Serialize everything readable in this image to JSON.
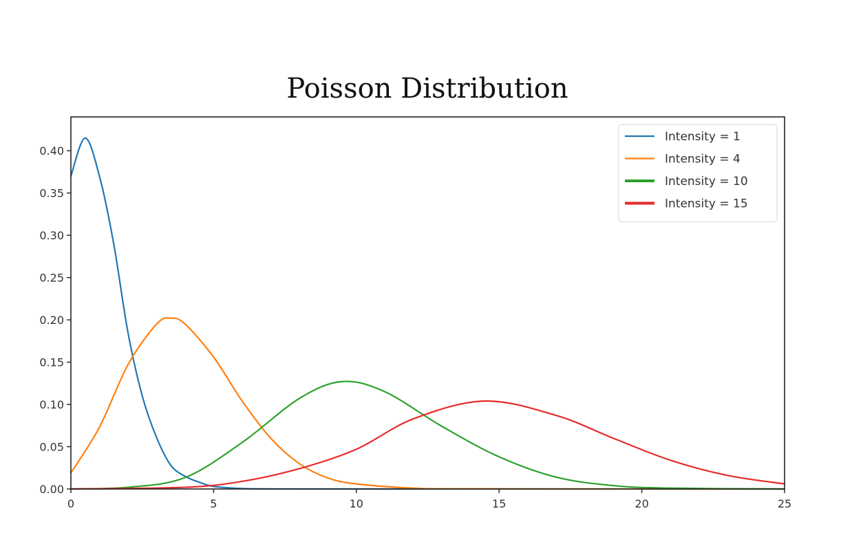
{
  "chart_data": {
    "type": "line",
    "title": "Poisson Distribution",
    "xlabel": "",
    "ylabel": "",
    "xlim": [
      0,
      25
    ],
    "ylim": [
      0,
      0.44
    ],
    "xticks": [
      0,
      5,
      10,
      15,
      20,
      25
    ],
    "xtick_labels": [
      "0",
      "5",
      "10",
      "15",
      "20",
      "25"
    ],
    "yticks": [
      0.0,
      0.05,
      0.1,
      0.15,
      0.2,
      0.25,
      0.3,
      0.35,
      0.4
    ],
    "ytick_labels": [
      "0.00",
      "0.05",
      "0.10",
      "0.15",
      "0.20",
      "0.25",
      "0.30",
      "0.35",
      "0.40"
    ],
    "grid": false,
    "legend_position": "top-right",
    "series": [
      {
        "name": "Intensity = 1",
        "label": "Intensity = 1",
        "color": "#1f77b4",
        "intensity": 1,
        "x": [
          0,
          0.5,
          1,
          1.5,
          2,
          2.5,
          3,
          3.5,
          4,
          4.5,
          5,
          6,
          7,
          8,
          10,
          25
        ],
        "values": [
          0.37,
          0.415,
          0.37,
          0.29,
          0.185,
          0.11,
          0.061,
          0.028,
          0.015,
          0.008,
          0.003,
          0.0005,
          0.0001,
          0,
          0,
          0
        ]
      },
      {
        "name": "Intensity = 4",
        "label": "Intensity = 4",
        "color": "#ff7f0e",
        "intensity": 4,
        "x": [
          0,
          1,
          2,
          3,
          3.5,
          4,
          5,
          6,
          7,
          8,
          9,
          10,
          12,
          14,
          25
        ],
        "values": [
          0.019,
          0.073,
          0.147,
          0.195,
          0.202,
          0.195,
          0.156,
          0.104,
          0.06,
          0.03,
          0.013,
          0.006,
          0.001,
          0.0002,
          0
        ]
      },
      {
        "name": "Intensity = 10",
        "label": "Intensity = 10",
        "color": "#2ca02c",
        "intensity": 10,
        "x": [
          0,
          2,
          4,
          6,
          8,
          9.5,
          11,
          13,
          15,
          17,
          19,
          21,
          25
        ],
        "values": [
          0,
          0.002,
          0.0135,
          0.055,
          0.107,
          0.127,
          0.115,
          0.074,
          0.038,
          0.014,
          0.004,
          0.001,
          0
        ]
      },
      {
        "name": "Intensity = 15",
        "label": "Intensity = 15",
        "color": "#e82a2a",
        "intensity": 15,
        "x": [
          0,
          4,
          6,
          8,
          10,
          12,
          14.5,
          17,
          19,
          21,
          23,
          25
        ],
        "values": [
          0,
          0.002,
          0.009,
          0.024,
          0.047,
          0.083,
          0.104,
          0.087,
          0.06,
          0.034,
          0.016,
          0.006
        ]
      }
    ]
  }
}
